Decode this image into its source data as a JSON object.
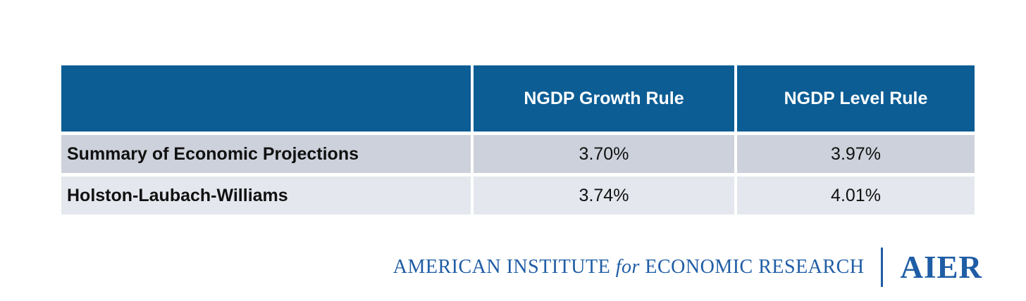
{
  "chart_data": {
    "type": "table",
    "title": "",
    "columns": [
      "",
      "NGDP Growth Rule",
      "NGDP Level Rule"
    ],
    "rows": [
      [
        "Summary of Economic Projections",
        "3.70%",
        "3.97%"
      ],
      [
        "Holston-Laubach-Williams",
        "3.74%",
        "4.01%"
      ]
    ]
  },
  "footer": {
    "text_left": "AMERICAN INSTITUTE",
    "text_for": "for",
    "text_right": "ECONOMIC RESEARCH",
    "acronym": "AIER"
  },
  "colors": {
    "header_blue": "#0c5d94",
    "row_odd_bg": "#cdd1db",
    "row_even_bg": "#e4e7ed",
    "logo_blue": "#1f5da5",
    "header_text": "#ffffff",
    "body_text": "#111111"
  }
}
